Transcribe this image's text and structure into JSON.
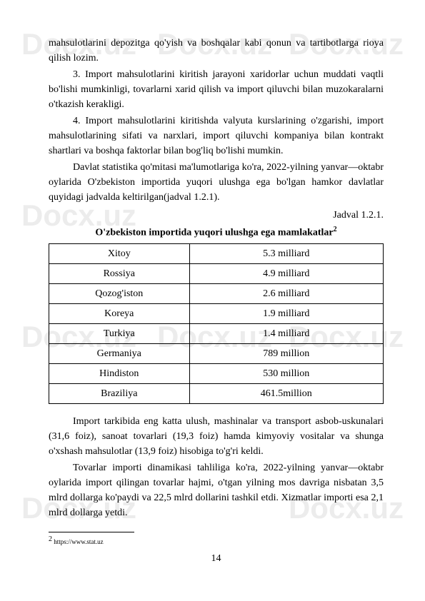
{
  "watermark": "Docx.uz",
  "paragraphs": {
    "p1": "mahsulotlarini depozitga qo'yish va boshqalar kabi qonun va tartibotlarga rioya qilish lozim.",
    "p2": "3. Import mahsulotlarini kiritish jarayoni xaridorlar uchun muddati vaqtli bo'lishi mumkinligi, tovarlarni xarid qilish va import qiluvchi bilan muzokaralarni o'tkazish kerakligi.",
    "p3": "4. Import mahsulotlarini kiritishda valyuta kurslarining o'zgarishi, import mahsulotlarining sifati va narxlari, import qiluvchi kompaniya bilan kontrakt shartlari va boshqa faktorlar bilan bog'liq bo'lishi mumkin.",
    "p4": "Davlat statistika qo'mitasi ma'lumotlariga ko'ra, 2022-yilning yanvar—oktabr oylarida O'zbekiston importida yuqori ulushga ega bo'lgan hamkor davlatlar quyidagi jadvalda keltirilgan(jadval 1.2.1).",
    "jadval_label": "Jadval 1.2.1.",
    "table_title": "O'zbekiston importida yuqori ulushga ega mamlakatlar",
    "table_title_sup": "2",
    "p5": "Import tarkibida eng katta ulush, mashinalar va transport asbob-uskunalari (31,6 foiz), sanoat tovarlari (19,3 foiz) hamda kimyoviy vositalar va shunga o'xshash mahsulotlar (13,9 foiz) hisobiga to'g'ri keldi.",
    "p6": "Tovarlar importi dinamikasi tahliliga ko'ra, 2022-yilning yanvar—oktabr oylarida import qilingan tovarlar hajmi, o'tgan yilning mos davriga nisbatan 3,5 mlrd dollarga ko'paydi va 22,5 mlrd dollarini tashkil etdi. Xizmatlar importi esa 2,1 mlrd dollarga yetdi."
  },
  "table": {
    "rows": [
      {
        "country": "Xitoy",
        "value": "5.3 milliard"
      },
      {
        "country": "Rossiya",
        "value": "4.9 milliard"
      },
      {
        "country": "Qozog'iston",
        "value": "2.6 milliard"
      },
      {
        "country": "Koreya",
        "value": "1.9 milliard"
      },
      {
        "country": "Turkiya",
        "value": "1.4 milliard"
      },
      {
        "country": "Germaniya",
        "value": "789 million"
      },
      {
        "country": "Hindiston",
        "value": "530 million"
      },
      {
        "country": "Braziliya",
        "value": "461.5million"
      }
    ]
  },
  "footnote": {
    "num": "2",
    "text": " https://www.stat.uz"
  },
  "page_number": "14",
  "colors": {
    "text": "#000000",
    "background": "#ffffff",
    "watermark": "rgba(128,128,128,0.15)",
    "border": "#000000"
  }
}
